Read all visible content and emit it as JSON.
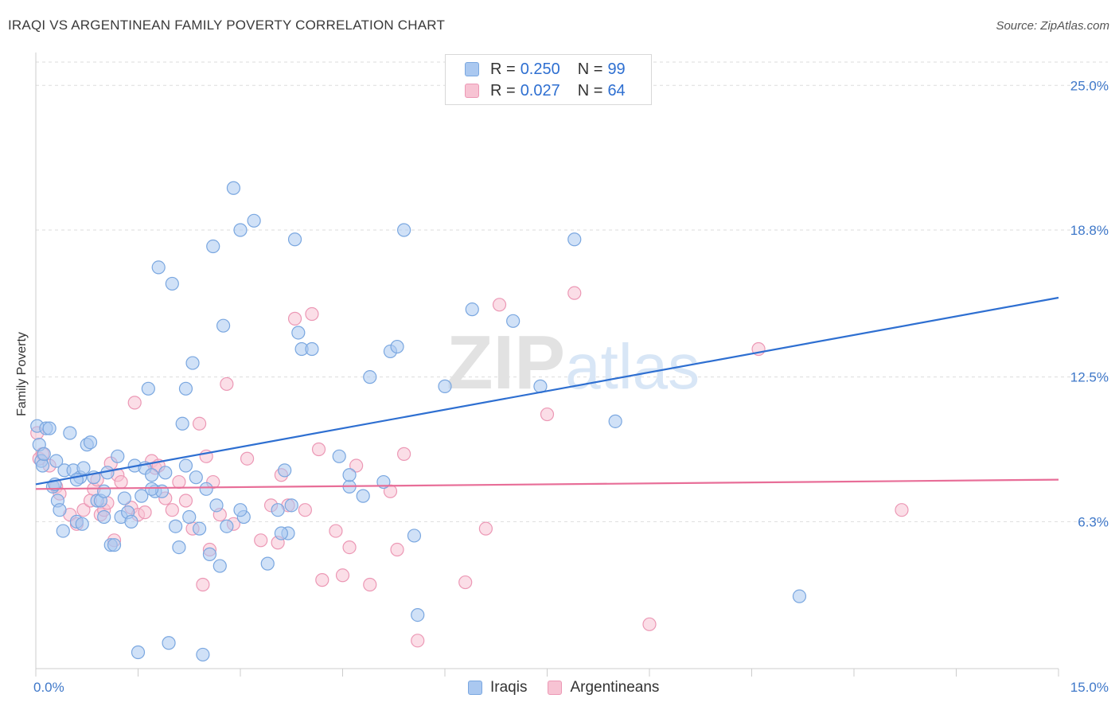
{
  "title": "IRAQI VS ARGENTINEAN FAMILY POVERTY CORRELATION CHART",
  "source": "Source: ZipAtlas.com",
  "watermark": "ZIPatlas",
  "colors": {
    "iraqis_fill": "#aac8f0",
    "iraqis_stroke": "#7aa7e0",
    "iraqis_line": "#2e6fd1",
    "argentineans_fill": "#f7c3d3",
    "argentineans_stroke": "#ec98b5",
    "argentineans_line": "#e86e98",
    "axis_text": "#3f78c9",
    "grid": "#dddddd"
  },
  "legend": {
    "rows": [
      {
        "r_label": "R =",
        "r_value": "0.250",
        "n_label": "N =",
        "n_value": "99"
      },
      {
        "r_label": "R =",
        "r_value": "0.027",
        "n_label": "N =",
        "n_value": "64"
      }
    ]
  },
  "chart_data": {
    "type": "scatter",
    "title": "IRAQI VS ARGENTINEAN FAMILY POVERTY CORRELATION CHART",
    "xlabel": "",
    "ylabel": "Family Poverty",
    "xlim": [
      0,
      15
    ],
    "ylim": [
      0,
      26
    ],
    "x_tick_labels": [
      "0.0%",
      "15.0%"
    ],
    "y_ticks": [
      6.3,
      12.5,
      18.8,
      25.0
    ],
    "y_tick_labels": [
      "6.3%",
      "12.5%",
      "18.8%",
      "25.0%"
    ],
    "grid": "horizontal dashed",
    "legend_position": "top-center",
    "series": [
      {
        "name": "Iraqis",
        "r": 0.25,
        "n": 99,
        "trend": {
          "x": [
            0,
            15
          ],
          "y": [
            7.9,
            15.9
          ]
        },
        "points": [
          [
            0.02,
            10.4
          ],
          [
            0.05,
            9.6
          ],
          [
            0.08,
            8.9
          ],
          [
            0.1,
            8.7
          ],
          [
            0.15,
            10.3
          ],
          [
            0.2,
            10.3
          ],
          [
            0.25,
            7.8
          ],
          [
            0.3,
            8.9
          ],
          [
            0.32,
            7.2
          ],
          [
            0.35,
            6.8
          ],
          [
            0.4,
            5.9
          ],
          [
            0.42,
            8.5
          ],
          [
            0.5,
            10.1
          ],
          [
            0.55,
            8.5
          ],
          [
            0.6,
            6.3
          ],
          [
            0.65,
            8.2
          ],
          [
            0.68,
            6.2
          ],
          [
            0.7,
            8.6
          ],
          [
            0.75,
            9.6
          ],
          [
            0.8,
            9.7
          ],
          [
            0.85,
            8.2
          ],
          [
            0.9,
            7.2
          ],
          [
            0.95,
            7.2
          ],
          [
            1.0,
            6.5
          ],
          [
            1.05,
            8.4
          ],
          [
            1.1,
            5.3
          ],
          [
            1.15,
            5.3
          ],
          [
            1.2,
            9.1
          ],
          [
            1.25,
            6.5
          ],
          [
            1.3,
            7.3
          ],
          [
            1.35,
            6.7
          ],
          [
            1.4,
            6.3
          ],
          [
            1.45,
            8.7
          ],
          [
            1.5,
            0.7
          ],
          [
            1.55,
            7.4
          ],
          [
            1.6,
            8.6
          ],
          [
            1.65,
            12.0
          ],
          [
            1.7,
            8.3
          ],
          [
            1.75,
            7.6
          ],
          [
            1.8,
            17.2
          ],
          [
            1.85,
            7.6
          ],
          [
            1.9,
            8.4
          ],
          [
            1.95,
            1.1
          ],
          [
            2.0,
            16.5
          ],
          [
            2.05,
            6.1
          ],
          [
            2.1,
            5.2
          ],
          [
            2.15,
            10.5
          ],
          [
            2.2,
            12.0
          ],
          [
            2.25,
            6.5
          ],
          [
            2.3,
            13.1
          ],
          [
            2.35,
            8.2
          ],
          [
            2.4,
            6.0
          ],
          [
            2.45,
            0.6
          ],
          [
            2.5,
            7.7
          ],
          [
            2.55,
            4.9
          ],
          [
            2.6,
            18.1
          ],
          [
            2.65,
            7.0
          ],
          [
            2.7,
            4.4
          ],
          [
            2.75,
            14.7
          ],
          [
            2.8,
            6.1
          ],
          [
            2.9,
            20.6
          ],
          [
            3.0,
            18.8
          ],
          [
            3.05,
            6.5
          ],
          [
            3.2,
            19.2
          ],
          [
            3.4,
            4.5
          ],
          [
            3.55,
            6.8
          ],
          [
            3.65,
            8.5
          ],
          [
            3.7,
            5.8
          ],
          [
            3.75,
            7.0
          ],
          [
            3.8,
            18.4
          ],
          [
            3.85,
            14.4
          ],
          [
            3.9,
            13.7
          ],
          [
            4.05,
            13.7
          ],
          [
            4.45,
            9.1
          ],
          [
            4.6,
            7.8
          ],
          [
            4.8,
            7.4
          ],
          [
            4.9,
            12.5
          ],
          [
            5.1,
            8.0
          ],
          [
            5.2,
            13.6
          ],
          [
            5.3,
            13.8
          ],
          [
            5.4,
            18.8
          ],
          [
            5.55,
            5.7
          ],
          [
            5.6,
            2.3
          ],
          [
            6.0,
            12.1
          ],
          [
            6.4,
            15.4
          ],
          [
            7.0,
            14.9
          ],
          [
            7.4,
            12.1
          ],
          [
            7.9,
            18.4
          ],
          [
            8.5,
            10.6
          ],
          [
            11.2,
            3.1
          ],
          [
            0.12,
            9.2
          ],
          [
            0.28,
            7.9
          ],
          [
            0.6,
            8.1
          ],
          [
            1.0,
            7.6
          ],
          [
            1.7,
            7.7
          ],
          [
            2.2,
            8.7
          ],
          [
            3.0,
            6.8
          ],
          [
            3.6,
            5.8
          ],
          [
            4.6,
            8.3
          ]
        ]
      },
      {
        "name": "Argentineans",
        "r": 0.027,
        "n": 64,
        "trend": {
          "x": [
            0,
            15
          ],
          "y": [
            7.7,
            8.1
          ]
        },
        "points": [
          [
            0.02,
            10.1
          ],
          [
            0.05,
            9.0
          ],
          [
            0.1,
            9.2
          ],
          [
            0.2,
            8.7
          ],
          [
            0.3,
            7.8
          ],
          [
            0.35,
            7.5
          ],
          [
            0.5,
            6.6
          ],
          [
            0.6,
            6.2
          ],
          [
            0.7,
            6.8
          ],
          [
            0.8,
            7.2
          ],
          [
            0.85,
            7.7
          ],
          [
            0.9,
            8.1
          ],
          [
            0.95,
            6.6
          ],
          [
            1.0,
            6.8
          ],
          [
            1.05,
            7.1
          ],
          [
            1.1,
            8.8
          ],
          [
            1.15,
            5.5
          ],
          [
            1.2,
            8.3
          ],
          [
            1.25,
            8.0
          ],
          [
            1.4,
            6.9
          ],
          [
            1.45,
            11.4
          ],
          [
            1.5,
            6.6
          ],
          [
            1.6,
            6.7
          ],
          [
            1.7,
            8.9
          ],
          [
            1.75,
            8.6
          ],
          [
            1.8,
            8.7
          ],
          [
            1.9,
            7.3
          ],
          [
            2.0,
            6.8
          ],
          [
            2.1,
            8.0
          ],
          [
            2.2,
            7.2
          ],
          [
            2.3,
            6.0
          ],
          [
            2.4,
            10.5
          ],
          [
            2.45,
            3.6
          ],
          [
            2.5,
            9.1
          ],
          [
            2.55,
            5.1
          ],
          [
            2.6,
            8.0
          ],
          [
            2.7,
            6.6
          ],
          [
            2.8,
            12.2
          ],
          [
            2.9,
            6.2
          ],
          [
            3.1,
            9.0
          ],
          [
            3.3,
            5.5
          ],
          [
            3.45,
            7.0
          ],
          [
            3.55,
            5.4
          ],
          [
            3.6,
            8.3
          ],
          [
            3.7,
            7.0
          ],
          [
            3.8,
            15.0
          ],
          [
            3.95,
            6.8
          ],
          [
            4.05,
            15.2
          ],
          [
            4.15,
            9.4
          ],
          [
            4.2,
            3.8
          ],
          [
            4.4,
            5.9
          ],
          [
            4.5,
            4.0
          ],
          [
            4.6,
            5.2
          ],
          [
            4.7,
            8.7
          ],
          [
            4.9,
            3.6
          ],
          [
            5.2,
            7.6
          ],
          [
            5.3,
            5.1
          ],
          [
            5.4,
            9.2
          ],
          [
            5.6,
            1.2
          ],
          [
            6.3,
            3.7
          ],
          [
            6.6,
            6.0
          ],
          [
            6.8,
            15.6
          ],
          [
            7.5,
            10.9
          ],
          [
            7.9,
            16.1
          ]
        ]
      }
    ],
    "extra_points_argentineans": [
      [
        9.0,
        1.9
      ],
      [
        10.6,
        13.7
      ],
      [
        12.7,
        6.8
      ]
    ]
  },
  "bottom_legend": [
    "Iraqis",
    "Argentineans"
  ]
}
